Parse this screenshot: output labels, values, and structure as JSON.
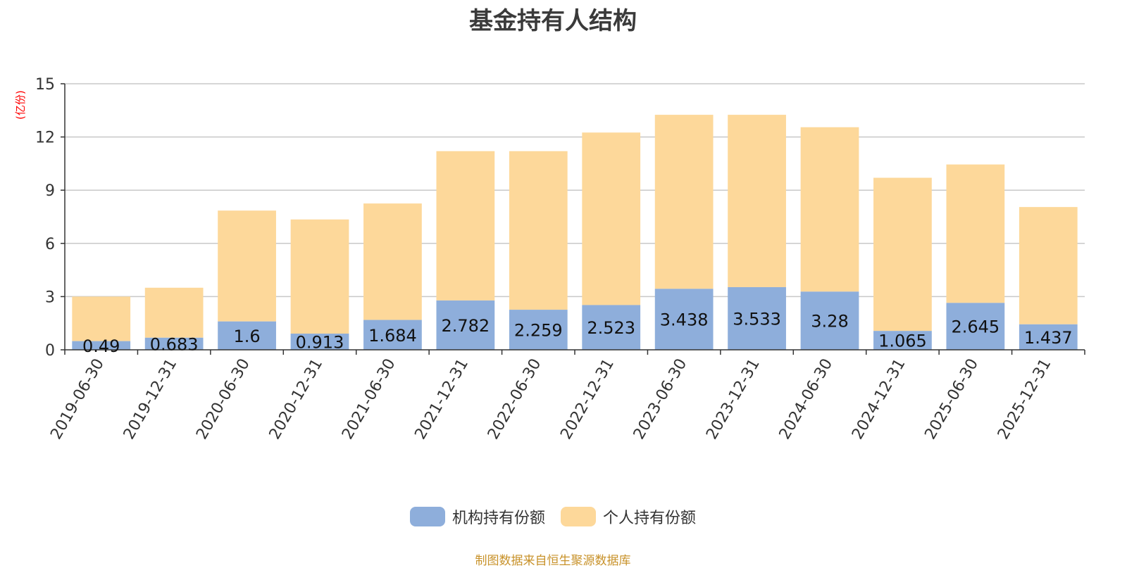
{
  "title": "基金持有人结构",
  "unit_label": "(亿份)",
  "source_note": "制图数据来自恒生聚源数据库",
  "colors": {
    "institutional": "#8eaedb",
    "individual": "#fdd89a",
    "grid": "#c8c8c8",
    "axis": "#333333"
  },
  "chart_data": {
    "type": "bar",
    "stacked": true,
    "title": "基金持有人结构",
    "ylabel": "(亿份)",
    "ylim": [
      0,
      15
    ],
    "yticks": [
      0,
      3,
      6,
      9,
      12,
      15
    ],
    "grid": true,
    "legend_position": "bottom",
    "categories": [
      "2019-06-30",
      "2019-12-31",
      "2020-06-30",
      "2020-12-31",
      "2021-06-30",
      "2021-12-31",
      "2022-06-30",
      "2022-12-31",
      "2023-06-30",
      "2023-12-31",
      "2024-06-30",
      "2024-12-31",
      "2025-06-30",
      "2025-12-31"
    ],
    "series": [
      {
        "name": "机构持有份额",
        "values": [
          0.49,
          0.683,
          1.6,
          0.913,
          1.684,
          2.782,
          2.259,
          2.523,
          3.438,
          3.533,
          3.28,
          1.065,
          2.645,
          1.437
        ]
      },
      {
        "name": "个人持有份额",
        "values": [
          2.51,
          2.817,
          6.25,
          6.437,
          6.566,
          8.418,
          8.941,
          9.727,
          9.812,
          9.717,
          9.27,
          8.635,
          7.805,
          6.613
        ]
      }
    ],
    "data_labels": [
      "0.49",
      "0.683",
      "1.6",
      "0.913",
      "1.684",
      "2.782",
      "2.259",
      "2.523",
      "3.438",
      "3.533",
      "3.28",
      "1.065",
      "2.645",
      "1.437"
    ]
  }
}
